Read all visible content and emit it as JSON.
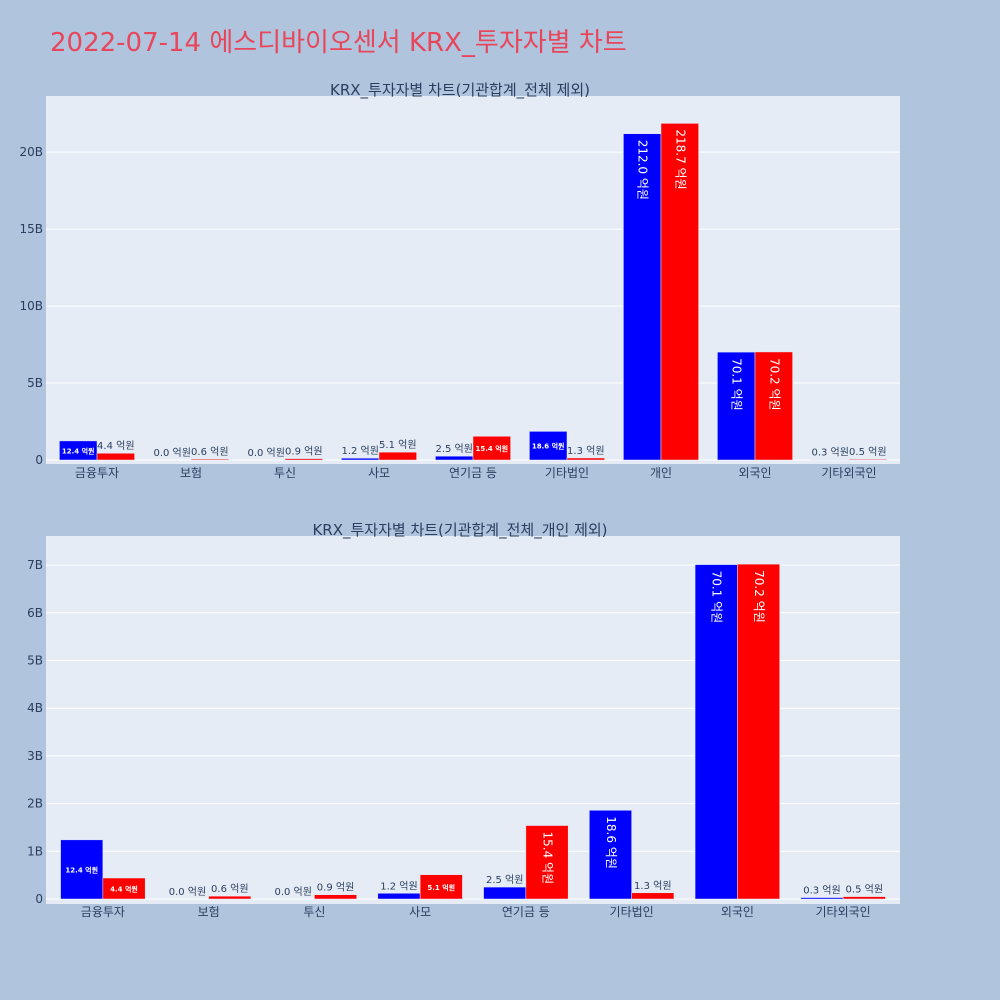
{
  "page": {
    "title": "2022-07-14 에스디바이오센서 KRX_투자자별 차트"
  },
  "colors": {
    "buy": "#0000ff",
    "sell": "#ff0000",
    "plot_bg": "#e5ecf6",
    "grid": "#ffffff",
    "background": "#b0c4de"
  },
  "chart_data": [
    {
      "type": "bar",
      "title": "KRX_투자자별 차트(기관합계_전체 제외)",
      "categories": [
        "금융투자",
        "보험",
        "투신",
        "사모",
        "연기금 등",
        "기타법인",
        "개인",
        "외국인",
        "기타외국인"
      ],
      "series": [
        {
          "values": [
            1.24,
            0.0,
            0.0,
            0.12,
            0.25,
            1.86,
            21.2,
            7.01,
            0.03
          ],
          "labels": [
            "12.4 억원",
            "0.0 억원",
            "0.0 억원",
            "1.2 억원",
            "2.5 억원",
            "18.6 억원",
            "212.0 억원",
            "70.1 억원",
            "0.3 억원"
          ]
        },
        {
          "values": [
            0.44,
            0.06,
            0.09,
            0.51,
            1.54,
            0.13,
            21.87,
            7.02,
            0.05
          ],
          "labels": [
            "4.4 억원",
            "0.6 억원",
            "0.9 억원",
            "5.1 억원",
            "15.4 억원",
            "1.3 억원",
            "218.7 억원",
            "70.2 억원",
            "0.5 억원"
          ]
        }
      ],
      "yticks": [
        "0",
        "5B",
        "10B",
        "15B",
        "20B"
      ],
      "ylim": [
        0,
        23.0
      ],
      "grid": true,
      "legend": "none"
    },
    {
      "type": "bar",
      "title": "KRX_투자자별 차트(기관합계_전체_개인 제외)",
      "categories": [
        "금융투자",
        "보험",
        "투신",
        "사모",
        "연기금 등",
        "기타법인",
        "외국인",
        "기타외국인"
      ],
      "series": [
        {
          "values": [
            1.24,
            0.0,
            0.0,
            0.12,
            0.25,
            1.86,
            7.01,
            0.03
          ],
          "labels": [
            "12.4 억원",
            "0.0 억원",
            "0.0 억원",
            "1.2 억원",
            "2.5 억원",
            "18.6 억원",
            "70.1 억원",
            "0.3 억원"
          ]
        },
        {
          "values": [
            0.44,
            0.06,
            0.09,
            0.51,
            1.54,
            0.13,
            7.02,
            0.05
          ],
          "labels": [
            "4.4 억원",
            "0.6 억원",
            "0.9 억원",
            "5.1 억원",
            "15.4 억원",
            "1.3 억원",
            "70.2 억원",
            "0.5 억원"
          ]
        }
      ],
      "yticks": [
        "0",
        "1B",
        "2B",
        "3B",
        "4B",
        "5B",
        "6B",
        "7B"
      ],
      "ylim": [
        0,
        7.4
      ],
      "grid": true,
      "legend": "none"
    }
  ]
}
